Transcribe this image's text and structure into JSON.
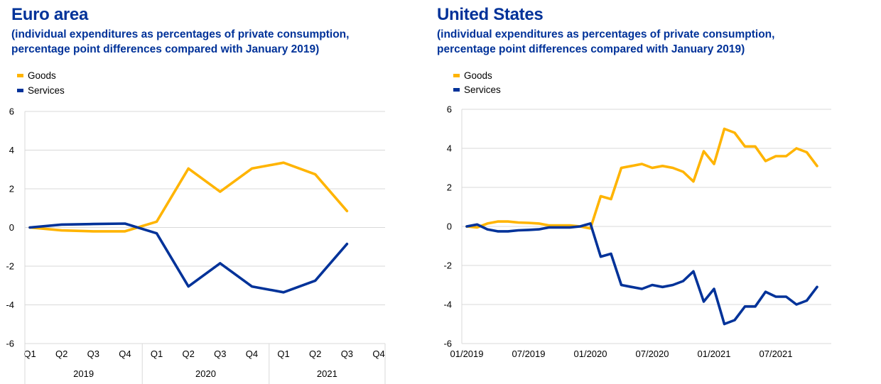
{
  "colors": {
    "goods": "#FFB400",
    "services": "#003299",
    "title": "#003299",
    "grid": "#d9d9d9"
  },
  "panels": {
    "euro": {
      "title": "Euro area",
      "subtitle_line1": "(individual expenditures as percentages of private consumption,",
      "subtitle_line2": "percentage point differences compared with January 2019)",
      "legend": [
        "Goods",
        "Services"
      ]
    },
    "us": {
      "title": "United States",
      "subtitle_line1": "(individual expenditures as percentages of private consumption,",
      "subtitle_line2": "percentage point differences compared with January 2019)",
      "legend": [
        "Goods",
        "Services"
      ]
    }
  },
  "chart_data": [
    {
      "type": "line",
      "title": "Euro area",
      "subtitle": "(individual expenditures as percentages of private consumption, percentage point differences compared with January 2019)",
      "xlabel": "",
      "ylabel": "",
      "ylim": [
        -6,
        6
      ],
      "yticks": [
        6,
        4,
        2,
        0,
        -2,
        -4,
        -6
      ],
      "grid": true,
      "legend_position": "top-left",
      "categories": [
        "Q1",
        "Q2",
        "Q3",
        "Q4",
        "Q1",
        "Q2",
        "Q3",
        "Q4",
        "Q1",
        "Q2",
        "Q3",
        "Q4"
      ],
      "year_groups": [
        {
          "label": "2019",
          "span": 4
        },
        {
          "label": "2020",
          "span": 4
        },
        {
          "label": "2021",
          "span": 4
        }
      ],
      "series": [
        {
          "name": "Goods",
          "color": "#FFB400",
          "values": [
            0,
            -0.15,
            -0.2,
            -0.2,
            0.3,
            3.05,
            1.85,
            3.05,
            3.35,
            2.75,
            0.85
          ]
        },
        {
          "name": "Services",
          "color": "#003299",
          "values": [
            0,
            0.15,
            0.18,
            0.2,
            -0.3,
            -3.05,
            -1.85,
            -3.05,
            -3.35,
            -2.75,
            -0.85
          ]
        }
      ]
    },
    {
      "type": "line",
      "title": "United States",
      "subtitle": "(individual expenditures as percentages of private consumption, percentage point differences compared with January 2019)",
      "xlabel": "",
      "ylabel": "",
      "ylim": [
        -6,
        6
      ],
      "yticks": [
        6,
        4,
        2,
        0,
        -2,
        -4,
        -6
      ],
      "grid": true,
      "legend_position": "top-left",
      "x_start": "01/2019",
      "x_months": 36,
      "xtick_labels": [
        {
          "label": "01/2019",
          "month_index": 0
        },
        {
          "label": "07/2019",
          "month_index": 6
        },
        {
          "label": "01/2020",
          "month_index": 12
        },
        {
          "label": "07/2020",
          "month_index": 18
        },
        {
          "label": "01/2021",
          "month_index": 24
        },
        {
          "label": "07/2021",
          "month_index": 30
        }
      ],
      "series": [
        {
          "name": "Goods",
          "color": "#FFB400",
          "values": [
            0,
            -0.05,
            0.15,
            0.25,
            0.25,
            0.2,
            0.18,
            0.15,
            0.05,
            0.05,
            0.05,
            0.0,
            -0.1,
            1.55,
            1.4,
            3.0,
            3.1,
            3.2,
            3.0,
            3.1,
            3.0,
            2.8,
            2.3,
            3.85,
            3.2,
            5.0,
            4.8,
            4.1,
            4.1,
            3.35,
            3.6,
            3.6,
            4.0,
            3.8,
            3.1
          ]
        },
        {
          "name": "Services",
          "color": "#003299",
          "values": [
            0,
            0.1,
            -0.15,
            -0.25,
            -0.25,
            -0.2,
            -0.18,
            -0.15,
            -0.05,
            -0.05,
            -0.05,
            0.0,
            0.15,
            -1.55,
            -1.4,
            -3.0,
            -3.1,
            -3.2,
            -3.0,
            -3.1,
            -3.0,
            -2.8,
            -2.3,
            -3.85,
            -3.2,
            -5.0,
            -4.8,
            -4.1,
            -4.1,
            -3.35,
            -3.6,
            -3.6,
            -4.0,
            -3.8,
            -3.1
          ]
        }
      ]
    }
  ]
}
